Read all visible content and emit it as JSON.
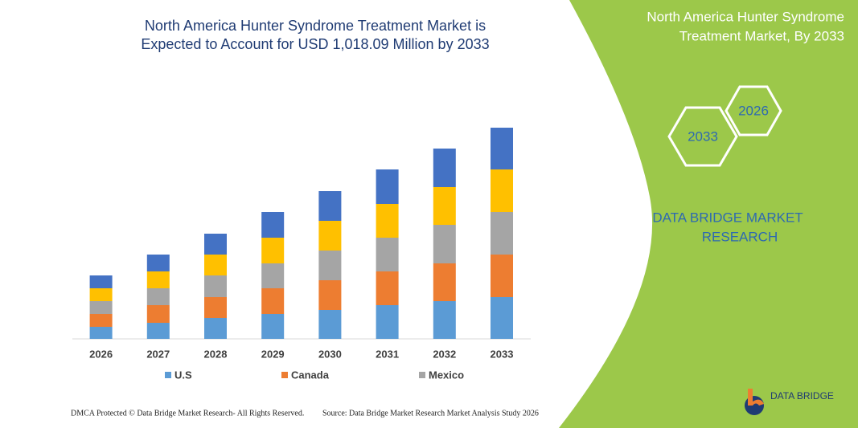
{
  "chart_data": {
    "type": "stacked-bar",
    "title": [
      "North America Hunter Syndrome Treatment Market is",
      "Expected to Account for USD 1,018.09 Million by 2033"
    ],
    "categories": [
      "2026",
      "2027",
      "2028",
      "2029",
      "2030",
      "2031",
      "2032",
      "2033"
    ],
    "series": [
      {
        "name": "U.S",
        "color": "#5b9bd5",
        "values": [
          15,
          20,
          26,
          31,
          36,
          42,
          47,
          52
        ]
      },
      {
        "name": "Canada",
        "color": "#ed7d31",
        "values": [
          16,
          22,
          26,
          32,
          37,
          42,
          47,
          53
        ]
      },
      {
        "name": "Mexico",
        "color": "#a5a5a5",
        "values": [
          16,
          21,
          27,
          31,
          37,
          42,
          48,
          53
        ]
      },
      {
        "color": "#ffc000",
        "values": [
          16,
          21,
          26,
          32,
          37,
          42,
          47,
          53
        ]
      },
      {
        "color": "#4472c4",
        "values": [
          16,
          21,
          26,
          32,
          37,
          43,
          48,
          52
        ]
      }
    ]
  },
  "panel": {
    "title": [
      "North America Hunter Syndrome",
      "Treatment Market, By 2033"
    ],
    "hex_1": "2026",
    "hex_2": "2033",
    "brand": [
      "DATA BRIDGE MARKET",
      "RESEARCH"
    ]
  },
  "footer": {
    "left": "DMCA Protected © Data Bridge Market Research-  All Rights Reserved.",
    "right": "Source: Data Bridge Market Research  Market Analysis Study 2026",
    "logo": "DATA BRIDGE"
  }
}
